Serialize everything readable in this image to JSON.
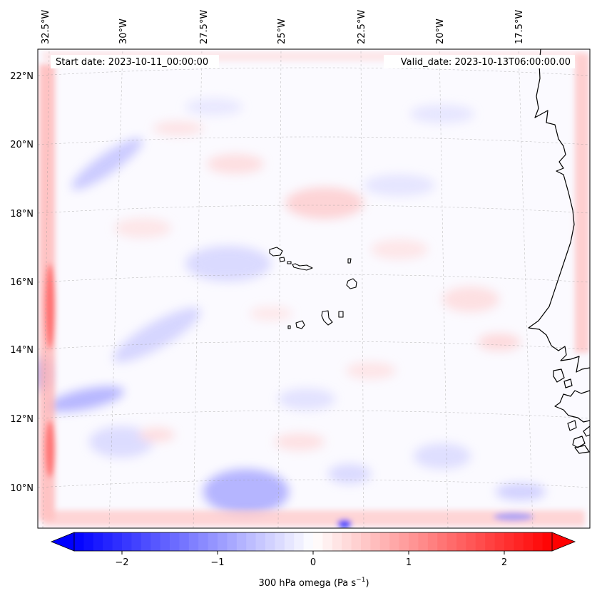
{
  "map": {
    "projection": "conic",
    "lon_labels": [
      "32.5°W",
      "30°W",
      "27.5°W",
      "25°W",
      "22.5°W",
      "20°W",
      "17.5°W"
    ],
    "lat_labels": [
      "22°N",
      "20°N",
      "18°N",
      "16°N",
      "14°N",
      "12°N",
      "10°N"
    ],
    "annotations": {
      "start_date": "Start date: 2023-10-11_00:00:00",
      "valid_date": "Valid_date: 2023-10-13T06:00:00.00"
    },
    "field": {
      "variable": "300 hPa omega",
      "colormap": "bwr",
      "vmin": -2.5,
      "vmax": 2.5
    },
    "colorbar": {
      "ticks": [
        "−2",
        "−1",
        "0",
        "1",
        "2"
      ],
      "label_main": "300 hPa omega (Pa s",
      "label_sup": "−1",
      "label_end": ")",
      "extend": "both"
    },
    "colors": {
      "negative": "#0000ff",
      "neutral": "#ffffff",
      "positive": "#ff0000",
      "coastline": "#000000"
    }
  }
}
